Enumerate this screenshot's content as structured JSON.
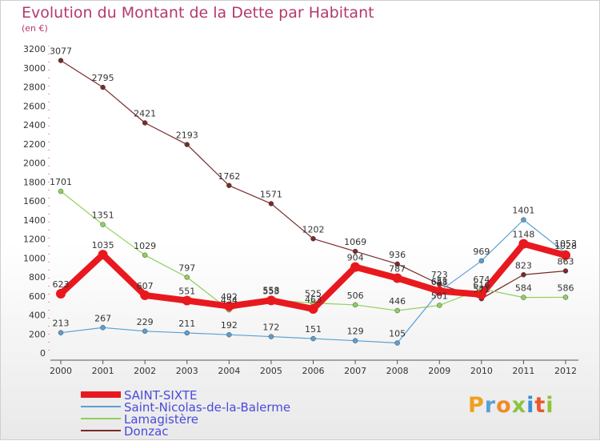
{
  "brand": {
    "name": "Proxiti",
    "letters": [
      "P",
      "r",
      "o",
      "x",
      "i",
      "t",
      "i"
    ]
  },
  "chart_data": {
    "type": "line",
    "title": "Evolution du Montant de la Dette par Habitant",
    "subtitle": "(en €)",
    "xlabel": "",
    "ylabel": "",
    "ylim": [
      0,
      3200
    ],
    "yticks": [
      0,
      200,
      400,
      600,
      800,
      1000,
      1200,
      1400,
      1600,
      1800,
      2000,
      2200,
      2400,
      2600,
      2800,
      3000,
      3200
    ],
    "categories": [
      "2000",
      "2001",
      "2002",
      "2003",
      "2004",
      "2005",
      "2006",
      "2007",
      "2008",
      "2009",
      "2010",
      "2011",
      "2012"
    ],
    "grid": false,
    "legend_position": "bottom-left",
    "series": [
      {
        "name": "Donzac",
        "color": "#7a2a2a",
        "values": [
          3077,
          2795,
          2421,
          2193,
          1762,
          1571,
          1202,
          1069,
          936,
          723,
          571,
          823,
          863
        ]
      },
      {
        "name": "Lamagistère",
        "color": "#8fd15a",
        "values": [
          1701,
          1351,
          1029,
          797,
          454,
          558,
          525,
          506,
          446,
          501,
          674,
          584,
          586
        ]
      },
      {
        "name": "Saint-Nicolas-de-la-Balerme",
        "color": "#5a9fd4",
        "values": [
          213,
          267,
          229,
          211,
          192,
          172,
          151,
          129,
          105,
          648,
          969,
          1401,
          1053
        ]
      },
      {
        "name": "SAINT-SIXTE",
        "color": "#e8191e",
        "values": [
          623,
          1035,
          607,
          551,
          492,
          553,
          463,
          904,
          787,
          651,
          616,
          1148,
          1028
        ]
      }
    ]
  }
}
